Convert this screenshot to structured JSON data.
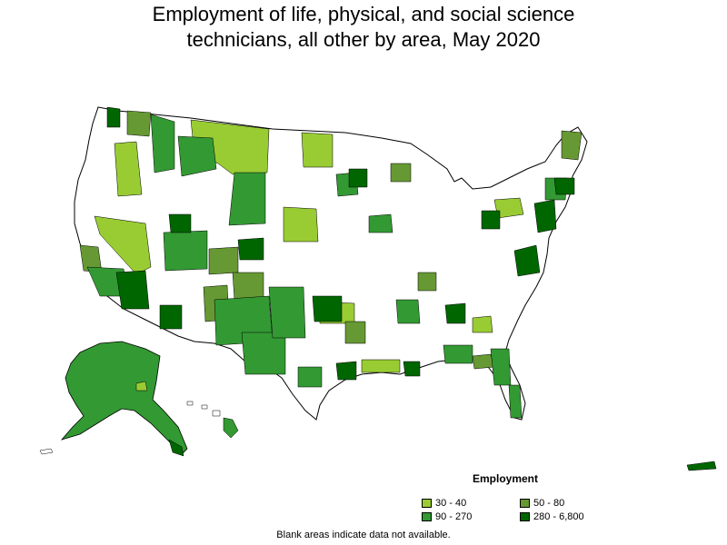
{
  "title_line1": "Employment of life, physical, and social science",
  "title_line2": "technicians, all other by area, May 2020",
  "legend": {
    "title": "Employment",
    "items": [
      {
        "label": "30 - 40",
        "color": "#99cc33"
      },
      {
        "label": "50 - 80",
        "color": "#669933"
      },
      {
        "label": "90 - 270",
        "color": "#339933"
      },
      {
        "label": "280 - 6,800",
        "color": "#006600"
      }
    ]
  },
  "note": "Blank areas indicate data not available.",
  "colors": {
    "blank": "#ffffff",
    "border": "#000000"
  }
}
